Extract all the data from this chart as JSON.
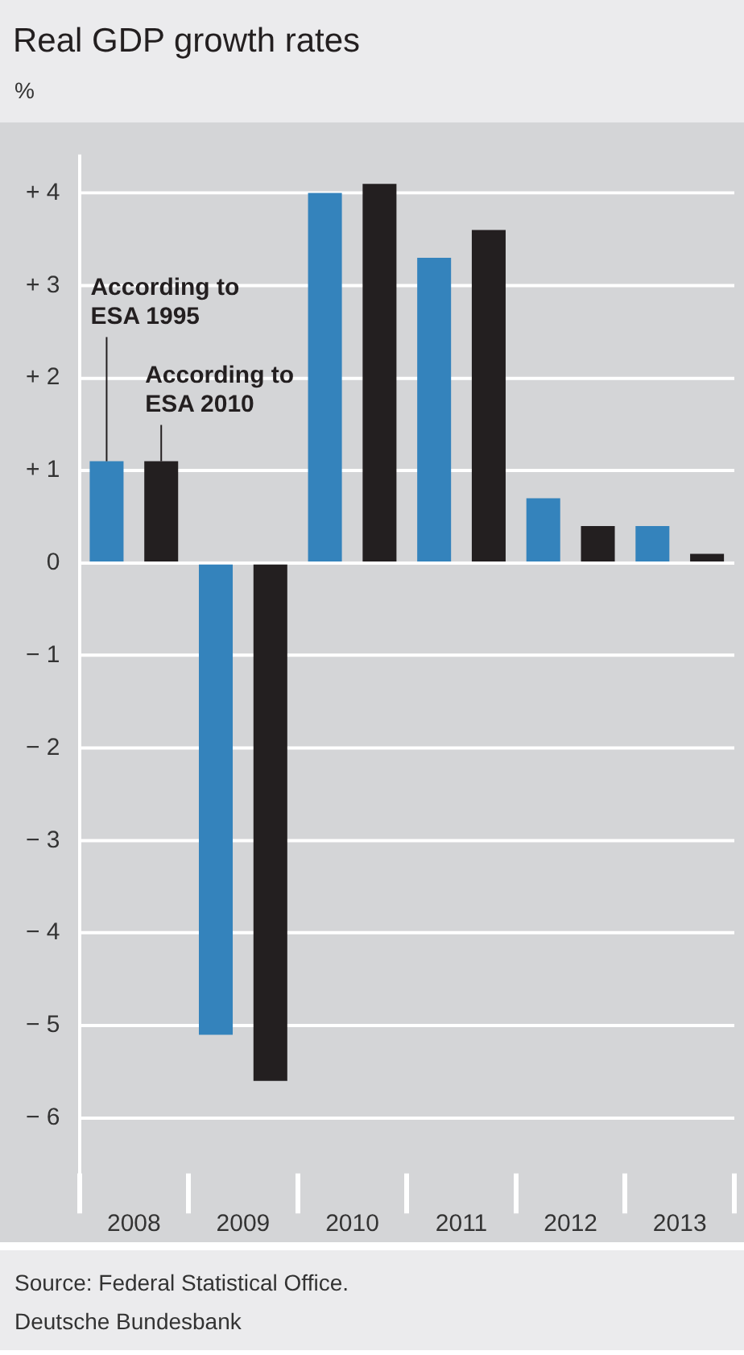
{
  "chart_data": {
    "type": "bar",
    "title": "Real GDP growth rates",
    "ylabel": "%",
    "categories": [
      "2008",
      "2009",
      "2010",
      "2011",
      "2012",
      "2013"
    ],
    "series": [
      {
        "name": "According to ESA 1995",
        "color": "#3483bc",
        "values": [
          1.1,
          -5.1,
          4.0,
          3.3,
          0.7,
          0.4
        ]
      },
      {
        "name": "According to ESA 2010",
        "color": "#231f20",
        "values": [
          1.1,
          -5.6,
          4.1,
          3.6,
          0.4,
          0.1
        ]
      }
    ],
    "ylim": [
      -6.6,
      4.4
    ],
    "yticks": [
      {
        "value": 4,
        "label": "+ 4"
      },
      {
        "value": 3,
        "label": "+ 3"
      },
      {
        "value": 2,
        "label": "+ 2"
      },
      {
        "value": 1,
        "label": "+ 1"
      },
      0,
      {
        "value": -1,
        "label": "− 1"
      },
      {
        "value": -2,
        "label": "− 2"
      },
      {
        "value": -3,
        "label": "− 3"
      },
      {
        "value": -4,
        "label": "− 4"
      },
      {
        "value": -5,
        "label": "− 5"
      },
      {
        "value": -6,
        "label": "− 6"
      }
    ],
    "grid": "y",
    "legend": false,
    "annotations": [
      "Source: Federal Statistical Office.",
      "Deutsche Bundesbank"
    ]
  }
}
